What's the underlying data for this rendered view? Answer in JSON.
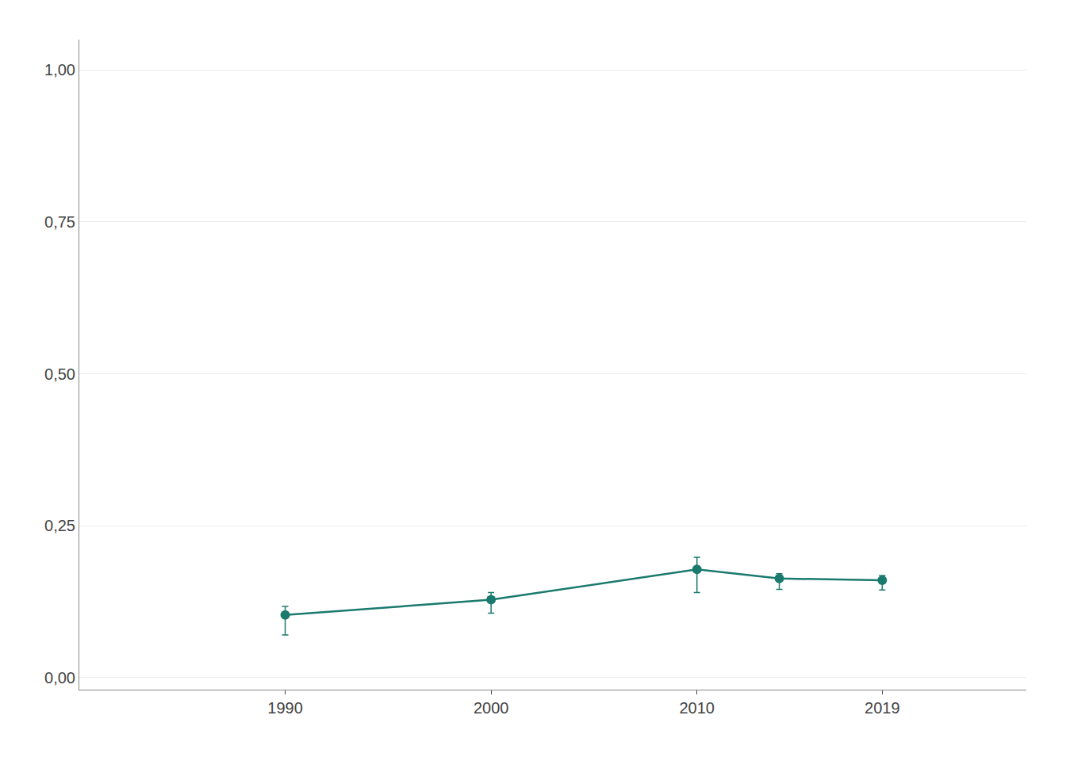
{
  "chart_data": {
    "type": "line",
    "x": [
      1990,
      2000,
      2010,
      2014,
      2019
    ],
    "values": [
      0.103,
      0.128,
      0.178,
      0.163,
      0.16
    ],
    "yerr_lower": [
      0.033,
      0.022,
      0.038,
      0.018,
      0.016
    ],
    "yerr_upper": [
      0.014,
      0.012,
      0.02,
      0.008,
      0.008
    ],
    "color": "#1a7a6e",
    "marker": "circle",
    "line_style": "solid",
    "ylim": [
      -0.02,
      1.05
    ],
    "yticks": [
      {
        "value": 0.0,
        "label": "0,00"
      },
      {
        "value": 0.25,
        "label": "0,25"
      },
      {
        "value": 0.5,
        "label": "0,50"
      },
      {
        "value": 0.75,
        "label": "0,75"
      },
      {
        "value": 1.0,
        "label": "1,00"
      }
    ],
    "xlim": [
      1980,
      2026
    ],
    "xticks": [
      1990,
      2000,
      2010,
      2019
    ],
    "grid": "y"
  }
}
